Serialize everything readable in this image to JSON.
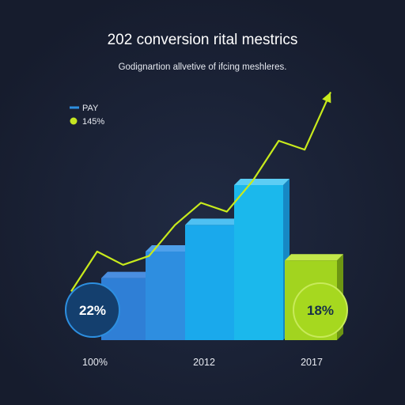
{
  "chart_data": {
    "type": "bar",
    "title": "202 conversion rital mestrics",
    "subtitle": "Godignartion allvetive of ifcing meshleres.",
    "legend": [
      {
        "label": "PAY",
        "color": "#2d8fe0",
        "marker": "line"
      },
      {
        "label": "145%",
        "color": "#c5e521",
        "marker": "dot"
      }
    ],
    "legend_placement": "top-left",
    "grid": false,
    "ylim": [
      0,
      100
    ],
    "x_tick_labels": [
      "100%",
      "2012",
      "2017"
    ],
    "bars": [
      {
        "value": 28,
        "front": "#2f7fd6",
        "side": "#1d4f9a",
        "top": "#4a8ee0"
      },
      {
        "value": 40,
        "front": "#2e8ee0",
        "side": "#1c58a8",
        "top": "#4fa0ea"
      },
      {
        "value": 52,
        "front": "#1aa9ec",
        "side": "#1675bd",
        "top": "#4fc0f2"
      },
      {
        "value": 70,
        "front": "#1bb8ec",
        "side": "#1688c4",
        "top": "#5ccdf4"
      },
      {
        "value": 36,
        "front": "#a2d41f",
        "side": "#6d9612",
        "top": "#c3e84a"
      }
    ],
    "trend_line": {
      "color": "#c8ea1c",
      "values": [
        22,
        40,
        34,
        38,
        52,
        62,
        58,
        72,
        90,
        86,
        112
      ]
    },
    "badges": [
      {
        "label": "22%",
        "fill": "#143f6e",
        "stroke": "#2d8fe0",
        "text_color": "#ffffff"
      },
      {
        "label": "18%",
        "fill": "#a6d81f",
        "stroke": "#c8ea5a",
        "text_color": "#173049"
      }
    ]
  }
}
